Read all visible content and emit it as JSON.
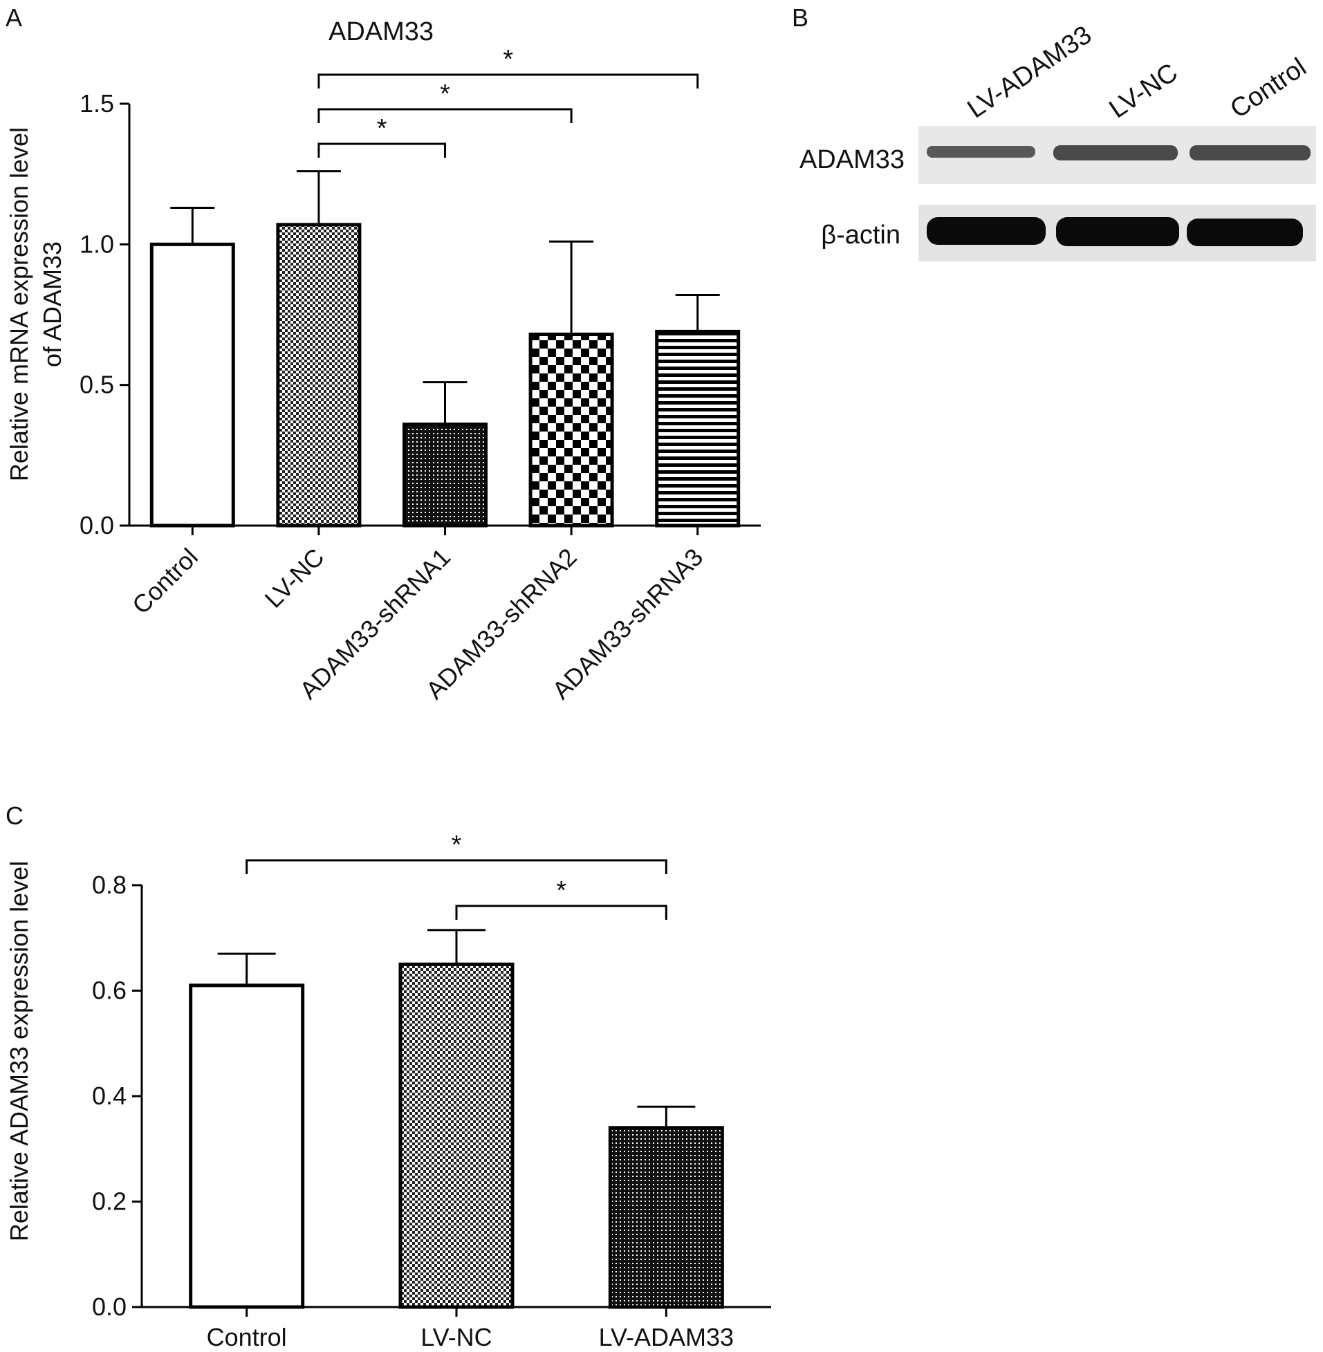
{
  "panels": {
    "A": {
      "letter": "A",
      "chart_data": {
        "type": "bar",
        "title": "ADAM33",
        "xlabel": "",
        "ylabel": "Relative mRNA expression level of ADAM33",
        "ylabel_lines": [
          "Relative mRNA expression level",
          "of ADAM33"
        ],
        "ylim": [
          0,
          1.5
        ],
        "yticks": [
          0.0,
          0.5,
          1.0,
          1.5
        ],
        "ytick_labels": [
          "0.0",
          "0.5",
          "1.0",
          "1.5"
        ],
        "categories": [
          "Control",
          "LV-NC",
          "ADAM33-shRNA1",
          "ADAM33-shRNA2",
          "ADAM33-shRNA3"
        ],
        "values": [
          1.0,
          1.07,
          0.36,
          0.68,
          0.69
        ],
        "errors": [
          0.13,
          0.19,
          0.15,
          0.33,
          0.13
        ],
        "patterns": [
          "white",
          "fine-checker",
          "dark-dots",
          "large-checker",
          "horizontal-stripes"
        ],
        "significance": [
          {
            "from": "LV-NC",
            "to": "ADAM33-shRNA1",
            "label": "*"
          },
          {
            "from": "LV-NC",
            "to": "ADAM33-shRNA2",
            "label": "*"
          },
          {
            "from": "LV-NC",
            "to": "ADAM33-shRNA3",
            "label": "*"
          }
        ],
        "grid": false
      }
    },
    "B": {
      "letter": "B",
      "lanes": [
        "LV-ADAM33",
        "LV-NC",
        "Control"
      ],
      "rows": [
        "ADAM33",
        "β-actin"
      ]
    },
    "C": {
      "letter": "C",
      "chart_data": {
        "type": "bar",
        "title": "",
        "xlabel": "",
        "ylabel": "Relative ADAM33 expression level",
        "ylim": [
          0,
          0.8
        ],
        "yticks": [
          0.0,
          0.2,
          0.4,
          0.6,
          0.8
        ],
        "ytick_labels": [
          "0.0",
          "0.2",
          "0.4",
          "0.6",
          "0.8"
        ],
        "categories": [
          "Control",
          "LV-NC",
          "LV-ADAM33"
        ],
        "values": [
          0.61,
          0.65,
          0.34
        ],
        "errors": [
          0.06,
          0.065,
          0.04
        ],
        "patterns": [
          "white",
          "fine-checker",
          "dark-dots"
        ],
        "significance": [
          {
            "from": "Control",
            "to": "LV-ADAM33",
            "label": "*"
          },
          {
            "from": "LV-NC",
            "to": "LV-ADAM33",
            "label": "*"
          }
        ],
        "grid": false
      }
    }
  }
}
